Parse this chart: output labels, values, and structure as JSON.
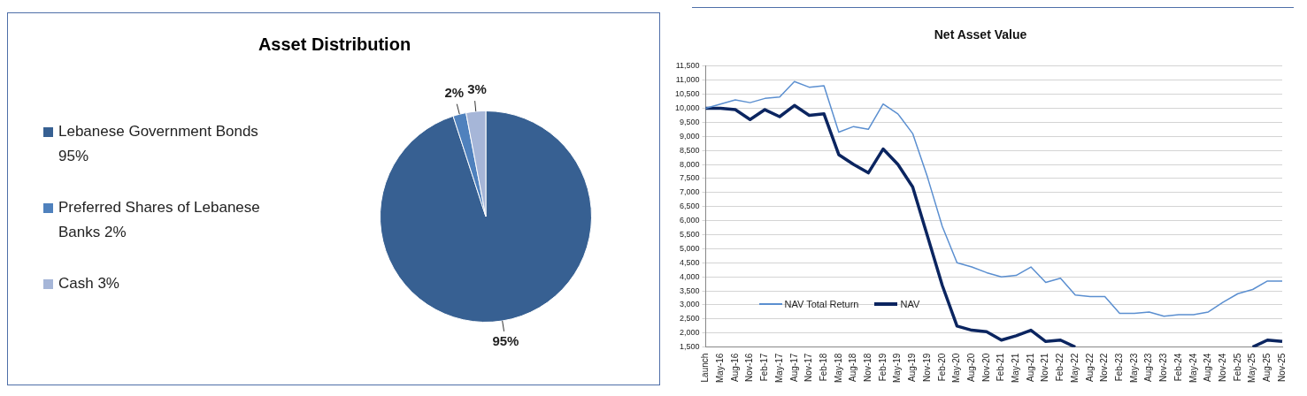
{
  "chart_data": [
    {
      "type": "pie",
      "title": "Asset Distribution",
      "categories": [
        "Lebanese Government Bonds 95%",
        "Preferred Shares of Lebanese Banks 2%",
        "Cash 3%"
      ],
      "values": [
        95,
        2,
        3
      ],
      "colors": [
        "#376092",
        "#4f81bd",
        "#a6b6d8"
      ],
      "value_labels": [
        "95%",
        "2%",
        "3%"
      ],
      "legend": "left"
    },
    {
      "type": "line",
      "title": "Net Asset Value",
      "categories": [
        "Launch",
        "May-16",
        "Aug-16",
        "Nov-16",
        "Feb-17",
        "May-17",
        "Aug-17",
        "Nov-17",
        "Feb-18",
        "May-18",
        "Aug-18",
        "Nov-18",
        "Feb-19",
        "May-19",
        "Aug-19",
        "Nov-19",
        "Feb-20",
        "May-20",
        "Aug-20",
        "Nov-20",
        "Feb-21",
        "May-21",
        "Aug-21",
        "Nov-21",
        "Feb-22",
        "May-22",
        "Aug-22",
        "Nov-22",
        "Feb-23",
        "May-23",
        "Aug-23",
        "Nov-23",
        "Feb-24",
        "May-24",
        "Aug-24",
        "Nov-24",
        "Feb-25",
        "May-25",
        "Aug-25",
        "Nov-25"
      ],
      "series": [
        {
          "name": "NAV Total Return",
          "color": "#5b8fd0",
          "values": [
            10000,
            10150,
            10300,
            10200,
            10350,
            10400,
            10950,
            10750,
            10800,
            9150,
            9350,
            9250,
            10150,
            9800,
            9100,
            7550,
            5800,
            4500,
            4350,
            4150,
            4000,
            4050,
            4350,
            3800,
            3950,
            3350,
            3300,
            3300,
            2700,
            2700,
            2750,
            2600,
            2650,
            2650,
            2750,
            3100,
            3400,
            3550,
            3850,
            3850
          ]
        },
        {
          "name": "NAV",
          "color": "#0b2560",
          "values": [
            10000,
            10000,
            9950,
            9600,
            9950,
            9700,
            10100,
            9750,
            9800,
            8350,
            8000,
            7700,
            8550,
            8000,
            7200,
            5450,
            3700,
            2250,
            2100,
            2050,
            1750,
            1900,
            2100,
            1700,
            1750,
            1500,
            null,
            null,
            null,
            null,
            null,
            null,
            null,
            null,
            null,
            null,
            null,
            1500,
            1750,
            1700
          ]
        }
      ],
      "ylim": [
        1500,
        11500
      ],
      "yticks": [
        {
          "value": 1500,
          "label": "1,500"
        },
        {
          "value": 2000,
          "label": "2,000"
        },
        {
          "value": 2500,
          "label": "2,500"
        },
        {
          "value": 3000,
          "label": "3,000"
        },
        {
          "value": 3500,
          "label": "3,500"
        },
        {
          "value": 4000,
          "label": "4,000"
        },
        {
          "value": 4500,
          "label": "4,500"
        },
        {
          "value": 5000,
          "label": "5,000"
        },
        {
          "value": 5500,
          "label": "5,500"
        },
        {
          "value": 6000,
          "label": "6,000"
        },
        {
          "value": 6500,
          "label": "6,500"
        },
        {
          "value": 7000,
          "label": "7,000"
        },
        {
          "value": 7500,
          "label": "7,500"
        },
        {
          "value": 8000,
          "label": "8,000"
        },
        {
          "value": 8500,
          "label": "8,500"
        },
        {
          "value": 9000,
          "label": "9,000"
        },
        {
          "value": 9500,
          "label": "9,500"
        },
        {
          "value": 10000,
          "label": "10,000"
        },
        {
          "value": 10500,
          "label": "10,500"
        },
        {
          "value": 11000,
          "label": "11,000"
        },
        {
          "value": 11500,
          "label": "11,500"
        }
      ],
      "grid": "y",
      "legend": "bottom left",
      "marker": "none",
      "line_style": "solid"
    }
  ]
}
